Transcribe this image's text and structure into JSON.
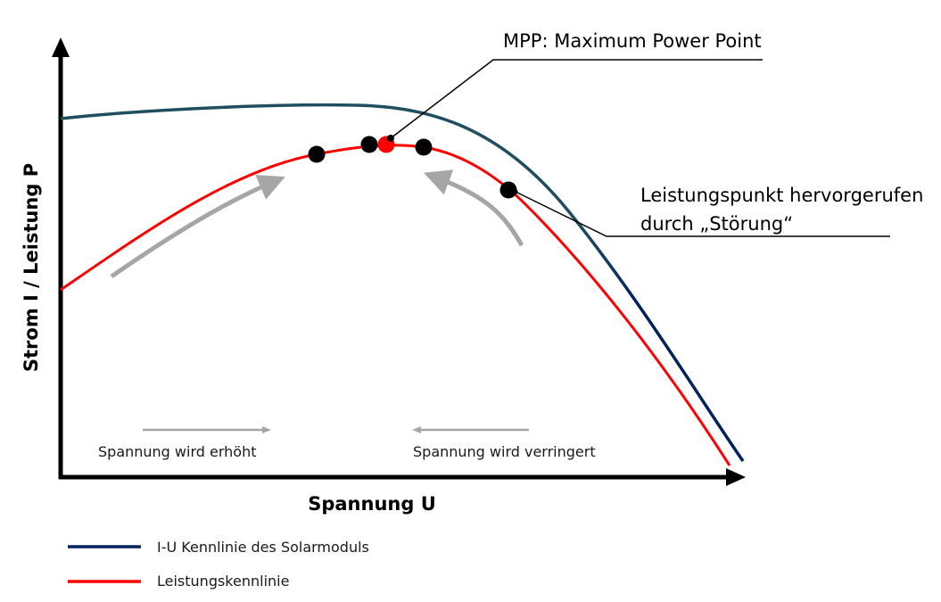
{
  "axes": {
    "x_title": "Spannung U",
    "y_title": "Strom I / Leistung P"
  },
  "annotations": {
    "mpp": "MPP: Maximum Power Point",
    "disturbance_line1": "Leistungspunkt hervorgerufen",
    "disturbance_line2": "durch „Störung“",
    "increase": "Spannung wird erhöht",
    "decrease": "Spannung wird verringert"
  },
  "legend": [
    {
      "label": "I-U Kennlinie des Solarmoduls",
      "color": "#002060"
    },
    {
      "label": "Leistungskennlinie",
      "color": "#ff0000"
    }
  ],
  "colors": {
    "iu_curve_top": "#1f4e5f",
    "iu_curve": "#002060",
    "power_curve": "#ff0000",
    "mpp_point": "#ff0000",
    "operating_points": "#000000",
    "direction_arrows": "#a6a6a6"
  }
}
